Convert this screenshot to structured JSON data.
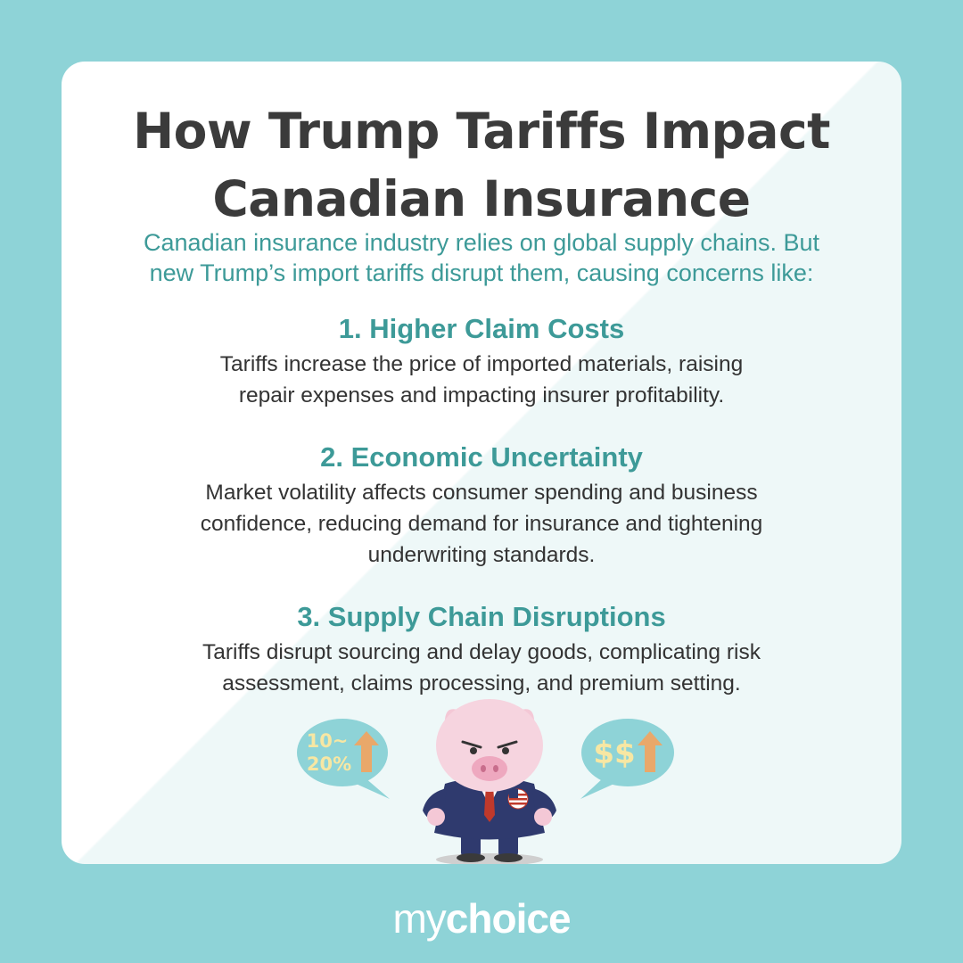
{
  "title_line1": "How Trump Tariffs Impact",
  "title_line2": "Canadian Insurance",
  "intro_line1": "Canadian insurance industry relies on global supply chains. But",
  "intro_line2": "new Trump’s import tariffs disrupt them, causing concerns like:",
  "sections": [
    {
      "heading": "1. Higher Claim Costs",
      "lines": [
        "Tariffs increase the price of imported materials, raising",
        "repair expenses and impacting insurer profitability."
      ]
    },
    {
      "heading": "2. Economic Uncertainty",
      "lines": [
        "Market volatility affects consumer spending and business",
        "confidence, reducing demand for insurance and tightening",
        "underwriting standards."
      ]
    },
    {
      "heading": "3. Supply Chain Disruptions",
      "lines": [
        "Tariffs disrupt sourcing and delay goods, complicating risk",
        "assessment, claims processing, and premium setting."
      ]
    }
  ],
  "bubble_left": {
    "line1": "10~",
    "line2": "20%"
  },
  "bubble_right": {
    "text": "$$"
  },
  "logo": {
    "my": "my",
    "choice": "choice"
  },
  "colors": {
    "background": "#8ed3d7",
    "accent": "#3d9a98",
    "title": "#3b3b3b",
    "bubble_text": "#f7e7a3",
    "arrow": "#e9a86a"
  }
}
